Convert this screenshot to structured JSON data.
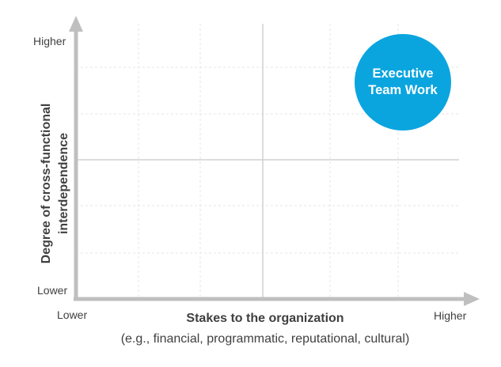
{
  "diagram": {
    "y_axis": {
      "title_line1": "Degree of cross-functional",
      "title_line2": "interdependence",
      "high_label": "Higher",
      "low_label": "Lower"
    },
    "x_axis": {
      "title": "Stakes to the organization",
      "subtitle": "(e.g., financial, programmatic, reputational, cultural)",
      "low_label": "Lower",
      "high_label": "Higher"
    },
    "highlight": {
      "label_line1": "Executive",
      "label_line2": "Team Work",
      "color": "#0aa5df"
    },
    "colors": {
      "axis": "#bfbfbf",
      "divider": "#d0d0d0",
      "grid": "#e6e6e6",
      "text": "#404040"
    }
  }
}
